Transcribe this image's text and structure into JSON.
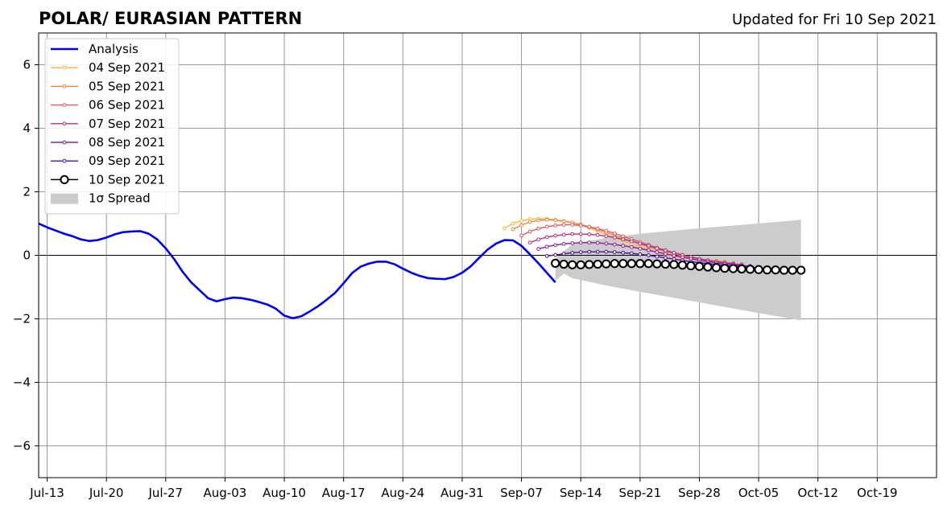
{
  "chart_data": {
    "type": "line",
    "title": "POLAR/ EURASIAN  PATTERN",
    "subtitle": "Updated for Fri 10 Sep 2021",
    "xlabel": "",
    "ylabel": "",
    "x_axis_type": "date",
    "xlim": [
      "2021-07-12",
      "2021-10-26"
    ],
    "ylim": [
      -7,
      7
    ],
    "grid": true,
    "legend_position": "upper-left",
    "x_ticks": [
      {
        "date": "2021-07-13",
        "label": "Jul-13"
      },
      {
        "date": "2021-07-20",
        "label": "Jul-20"
      },
      {
        "date": "2021-07-27",
        "label": "Jul-27"
      },
      {
        "date": "2021-08-03",
        "label": "Aug-03"
      },
      {
        "date": "2021-08-10",
        "label": "Aug-10"
      },
      {
        "date": "2021-08-17",
        "label": "Aug-17"
      },
      {
        "date": "2021-08-24",
        "label": "Aug-24"
      },
      {
        "date": "2021-08-31",
        "label": "Aug-31"
      },
      {
        "date": "2021-09-07",
        "label": "Sep-07"
      },
      {
        "date": "2021-09-14",
        "label": "Sep-14"
      },
      {
        "date": "2021-09-21",
        "label": "Sep-21"
      },
      {
        "date": "2021-09-28",
        "label": "Sep-28"
      },
      {
        "date": "2021-10-05",
        "label": "Oct-05"
      },
      {
        "date": "2021-10-12",
        "label": "Oct-12"
      },
      {
        "date": "2021-10-19",
        "label": "Oct-19"
      }
    ],
    "y_ticks": [
      {
        "value": 6,
        "label": "6"
      },
      {
        "value": 4,
        "label": "4"
      },
      {
        "value": 2,
        "label": "2"
      },
      {
        "value": 0,
        "label": "0"
      },
      {
        "value": -2,
        "label": "−2"
      },
      {
        "value": -4,
        "label": "−4"
      },
      {
        "value": -6,
        "label": "−6"
      }
    ],
    "analysis": {
      "name": "Analysis",
      "color": "#0000ee",
      "points": [
        [
          "2021-07-12",
          1.0
        ],
        [
          "2021-07-13",
          0.88
        ],
        [
          "2021-07-14",
          0.78
        ],
        [
          "2021-07-15",
          0.68
        ],
        [
          "2021-07-16",
          0.6
        ],
        [
          "2021-07-17",
          0.5
        ],
        [
          "2021-07-18",
          0.45
        ],
        [
          "2021-07-19",
          0.48
        ],
        [
          "2021-07-20",
          0.56
        ],
        [
          "2021-07-21",
          0.66
        ],
        [
          "2021-07-22",
          0.73
        ],
        [
          "2021-07-23",
          0.75
        ],
        [
          "2021-07-24",
          0.76
        ],
        [
          "2021-07-25",
          0.68
        ],
        [
          "2021-07-26",
          0.5
        ],
        [
          "2021-07-27",
          0.22
        ],
        [
          "2021-07-28",
          -0.12
        ],
        [
          "2021-07-29",
          -0.52
        ],
        [
          "2021-07-30",
          -0.85
        ],
        [
          "2021-07-31",
          -1.1
        ],
        [
          "2021-08-01",
          -1.35
        ],
        [
          "2021-08-02",
          -1.45
        ],
        [
          "2021-08-03",
          -1.38
        ],
        [
          "2021-08-04",
          -1.33
        ],
        [
          "2021-08-05",
          -1.35
        ],
        [
          "2021-08-06",
          -1.4
        ],
        [
          "2021-08-07",
          -1.47
        ],
        [
          "2021-08-08",
          -1.55
        ],
        [
          "2021-08-09",
          -1.68
        ],
        [
          "2021-08-10",
          -1.9
        ],
        [
          "2021-08-11",
          -1.98
        ],
        [
          "2021-08-12",
          -1.92
        ],
        [
          "2021-08-13",
          -1.77
        ],
        [
          "2021-08-14",
          -1.6
        ],
        [
          "2021-08-15",
          -1.4
        ],
        [
          "2021-08-16",
          -1.18
        ],
        [
          "2021-08-17",
          -0.88
        ],
        [
          "2021-08-18",
          -0.56
        ],
        [
          "2021-08-19",
          -0.36
        ],
        [
          "2021-08-20",
          -0.26
        ],
        [
          "2021-08-21",
          -0.2
        ],
        [
          "2021-08-22",
          -0.2
        ],
        [
          "2021-08-23",
          -0.28
        ],
        [
          "2021-08-24",
          -0.42
        ],
        [
          "2021-08-25",
          -0.55
        ],
        [
          "2021-08-26",
          -0.65
        ],
        [
          "2021-08-27",
          -0.72
        ],
        [
          "2021-08-28",
          -0.74
        ],
        [
          "2021-08-29",
          -0.75
        ],
        [
          "2021-08-30",
          -0.68
        ],
        [
          "2021-08-31",
          -0.55
        ],
        [
          "2021-09-01",
          -0.35
        ],
        [
          "2021-09-02",
          -0.08
        ],
        [
          "2021-09-03",
          0.18
        ],
        [
          "2021-09-04",
          0.37
        ],
        [
          "2021-09-05",
          0.48
        ],
        [
          "2021-09-06",
          0.47
        ],
        [
          "2021-09-07",
          0.3
        ],
        [
          "2021-09-08",
          0.03
        ],
        [
          "2021-09-09",
          -0.25
        ],
        [
          "2021-09-10",
          -0.55
        ],
        [
          "2021-09-11",
          -0.85
        ]
      ]
    },
    "spread": {
      "name": "1σ Spread",
      "color": "#cccccc",
      "upper": [
        [
          "2021-09-11",
          -0.1
        ],
        [
          "2021-09-13",
          0.35
        ],
        [
          "2021-09-17",
          0.55
        ],
        [
          "2021-09-21",
          0.68
        ],
        [
          "2021-09-28",
          0.85
        ],
        [
          "2021-10-05",
          1.0
        ],
        [
          "2021-10-10",
          1.12
        ]
      ],
      "lower": [
        [
          "2021-09-11",
          -0.8
        ],
        [
          "2021-09-12",
          -0.58
        ],
        [
          "2021-09-13",
          -0.72
        ],
        [
          "2021-09-17",
          -0.95
        ],
        [
          "2021-09-21",
          -1.15
        ],
        [
          "2021-09-28",
          -1.48
        ],
        [
          "2021-10-05",
          -1.82
        ],
        [
          "2021-10-10",
          -2.05
        ]
      ]
    },
    "series": [
      {
        "name": "04 Sep 2021",
        "color": "#f8b845",
        "start": "2021-09-05",
        "values": [
          0.85,
          1.0,
          1.09,
          1.14,
          1.15,
          1.15,
          1.12,
          1.08,
          1.02,
          0.95,
          0.86,
          0.76,
          0.66,
          0.56,
          0.46,
          0.36,
          0.27,
          0.18,
          0.1,
          0.03,
          -0.04,
          -0.09,
          -0.12,
          -0.15,
          -0.17,
          -0.19
        ]
      },
      {
        "name": "05 Sep 2021",
        "color": "#ee8640",
        "start": "2021-09-06",
        "values": [
          0.82,
          0.95,
          1.05,
          1.1,
          1.12,
          1.1,
          1.07,
          1.03,
          0.97,
          0.89,
          0.81,
          0.72,
          0.63,
          0.54,
          0.45,
          0.36,
          0.27,
          0.19,
          0.12,
          0.05,
          -0.02,
          -0.07,
          -0.11,
          -0.15,
          -0.18,
          -0.2
        ]
      },
      {
        "name": "06 Sep 2021",
        "color": "#d85a6a",
        "start": "2021-09-07",
        "values": [
          0.62,
          0.75,
          0.84,
          0.9,
          0.94,
          0.96,
          0.96,
          0.94,
          0.9,
          0.84,
          0.77,
          0.69,
          0.6,
          0.51,
          0.42,
          0.33,
          0.24,
          0.16,
          0.08,
          0.01,
          -0.06,
          -0.11,
          -0.16,
          -0.2,
          -0.23,
          -0.25
        ]
      },
      {
        "name": "07 Sep 2021",
        "color": "#b8307e",
        "start": "2021-09-08",
        "values": [
          0.4,
          0.5,
          0.57,
          0.62,
          0.65,
          0.67,
          0.67,
          0.66,
          0.64,
          0.6,
          0.56,
          0.5,
          0.44,
          0.37,
          0.3,
          0.22,
          0.15,
          0.08,
          0.01,
          -0.05,
          -0.11,
          -0.16,
          -0.2,
          -0.24,
          -0.27,
          -0.29
        ]
      },
      {
        "name": "08 Sep 2021",
        "color": "#8a1da2",
        "start": "2021-09-09",
        "values": [
          0.2,
          0.27,
          0.32,
          0.36,
          0.38,
          0.4,
          0.4,
          0.39,
          0.37,
          0.34,
          0.3,
          0.26,
          0.21,
          0.16,
          0.1,
          0.05,
          -0.01,
          -0.06,
          -0.11,
          -0.16,
          -0.2,
          -0.24,
          -0.27,
          -0.3,
          -0.32,
          -0.34
        ]
      },
      {
        "name": "09 Sep 2021",
        "color": "#4b0f9a",
        "start": "2021-09-10",
        "values": [
          -0.02,
          0.01,
          0.05,
          0.08,
          0.1,
          0.11,
          0.11,
          0.11,
          0.1,
          0.08,
          0.06,
          0.03,
          0.0,
          -0.04,
          -0.08,
          -0.12,
          -0.16,
          -0.2,
          -0.23,
          -0.26,
          -0.29,
          -0.32,
          -0.34,
          -0.36,
          -0.38,
          -0.4
        ]
      },
      {
        "name": "10 Sep 2021",
        "color": "#000000",
        "start": "2021-09-11",
        "values": [
          -0.25,
          -0.28,
          -0.3,
          -0.3,
          -0.29,
          -0.28,
          -0.27,
          -0.26,
          -0.26,
          -0.26,
          -0.26,
          -0.26,
          -0.27,
          -0.28,
          -0.29,
          -0.31,
          -0.33,
          -0.35,
          -0.37,
          -0.39,
          -0.41,
          -0.42,
          -0.43,
          -0.44,
          -0.45,
          -0.46,
          -0.46,
          -0.47,
          -0.47,
          -0.47
        ]
      }
    ],
    "legend": [
      {
        "key": "analysis",
        "label": "Analysis",
        "style": "line",
        "color": "#0000ee"
      },
      {
        "key": "s0",
        "label": "04 Sep 2021",
        "style": "line-marker",
        "color": "#f8b845"
      },
      {
        "key": "s1",
        "label": "05 Sep 2021",
        "style": "line-marker",
        "color": "#ee8640"
      },
      {
        "key": "s2",
        "label": "06 Sep 2021",
        "style": "line-marker",
        "color": "#d85a6a"
      },
      {
        "key": "s3",
        "label": "07 Sep 2021",
        "style": "line-marker",
        "color": "#b8307e"
      },
      {
        "key": "s4",
        "label": "08 Sep 2021",
        "style": "line-marker",
        "color": "#8a1da2"
      },
      {
        "key": "s5",
        "label": "09 Sep 2021",
        "style": "line-marker",
        "color": "#4b0f9a"
      },
      {
        "key": "s6",
        "label": "10 Sep 2021",
        "style": "line-circle",
        "color": "#000000"
      },
      {
        "key": "spread",
        "label": "1σ Spread",
        "style": "patch",
        "color": "#cccccc"
      }
    ]
  }
}
